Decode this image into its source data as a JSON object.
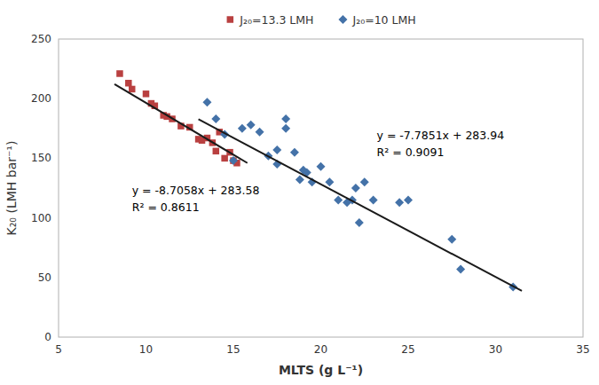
{
  "chart_data": {
    "type": "scatter",
    "xlabel": "MLTS (g L⁻¹)",
    "ylabel": "K₂₀ (LMH bar⁻¹)",
    "xlim": [
      5,
      35
    ],
    "ylim": [
      0,
      250
    ],
    "xticks": [
      5,
      10,
      15,
      20,
      25,
      30,
      35
    ],
    "yticks": [
      0,
      50,
      100,
      150,
      200,
      250
    ],
    "grid": false,
    "legend": "top",
    "series": [
      {
        "name": "J₂₀=13.3 LMH",
        "type": "scatter",
        "color": "#b94040",
        "marker": "square",
        "x": [
          8.5,
          9.0,
          9.2,
          10.0,
          10.3,
          10.5,
          11.0,
          11.2,
          11.5,
          12.0,
          12.5,
          13.0,
          13.2,
          13.5,
          13.8,
          14.0,
          14.2,
          14.5,
          14.8,
          15.0,
          15.2
        ],
        "values": [
          221,
          213,
          208,
          204,
          196,
          194,
          186,
          185,
          183,
          177,
          176,
          166,
          165,
          167,
          163,
          156,
          172,
          150,
          155,
          148,
          146
        ]
      },
      {
        "name": "J₂₀=10 LMH",
        "type": "scatter",
        "color": "#4472a8",
        "marker": "diamond",
        "x": [
          13.5,
          14.0,
          14.5,
          15.0,
          15.5,
          16.0,
          16.5,
          17.0,
          17.5,
          17.5,
          18.0,
          18.0,
          18.5,
          18.8,
          19.0,
          19.2,
          19.5,
          20.0,
          20.5,
          21.0,
          21.5,
          21.8,
          22.0,
          22.2,
          22.5,
          23.0,
          24.5,
          25.0,
          27.5,
          28.0,
          31.0
        ],
        "values": [
          197,
          183,
          170,
          148,
          175,
          178,
          172,
          152,
          157,
          145,
          175,
          183,
          155,
          132,
          140,
          138,
          130,
          143,
          130,
          115,
          113,
          115,
          125,
          96,
          130,
          115,
          113,
          115,
          82,
          57,
          42
        ]
      },
      {
        "type": "line",
        "color": "#1a1a1a",
        "line_style": "solid",
        "x": [
          8.2,
          15.8
        ],
        "values": [
          212.19244,
          146.02836
        ]
      },
      {
        "type": "line",
        "color": "#1a1a1a",
        "line_style": "solid",
        "x": [
          13.0,
          31.5
        ],
        "values": [
          182.7337,
          38.70935
        ]
      }
    ],
    "annotations": [
      {
        "lines": [
          "y = -8.7058x + 283.58",
          "R² = 0.8611"
        ],
        "x": 9.2,
        "y": 116
      },
      {
        "lines": [
          "y = -7.7851x + 283.94",
          "R² = 0.9091"
        ],
        "x": 23.2,
        "y": 162
      }
    ]
  }
}
